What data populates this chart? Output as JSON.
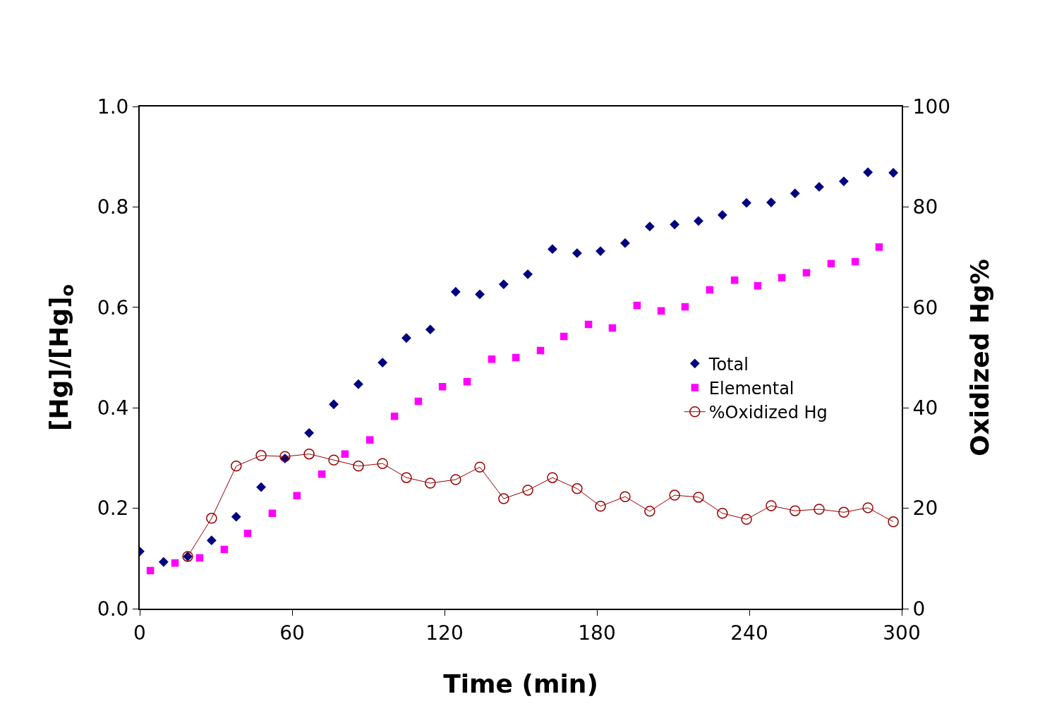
{
  "chart_data": {
    "type": "scatter",
    "xlabel": "Time (min)",
    "ylabel": "[Hg]/[Hg]$_{o}$",
    "y2label": "Oxidized Hg%",
    "xlim": [
      0,
      300
    ],
    "xticks": [
      0,
      60,
      120,
      180,
      240,
      300
    ],
    "ylim": [
      0,
      1
    ],
    "yticks": [
      {
        "value": 0,
        "label": "0.0"
      },
      {
        "value": 0.2,
        "label": "0.2"
      },
      {
        "value": 0.4,
        "label": "0.4"
      },
      {
        "value": 0.6,
        "label": "0.6"
      },
      {
        "value": 0.8,
        "label": "0.8"
      },
      {
        "value": 1,
        "label": "1.0"
      }
    ],
    "y2lim": [
      0,
      100
    ],
    "y2ticks": [
      0,
      20,
      40,
      60,
      80,
      100
    ],
    "grid": false,
    "legend": "right",
    "series": [
      {
        "name": "Total",
        "type": "scatter",
        "marker": "diamond",
        "color": "#000080",
        "x": [
          0,
          9.4,
          18.9,
          28.3,
          38,
          47.8,
          57.2,
          66.7,
          76.4,
          86.1,
          95.6,
          105,
          114.4,
          124.4,
          133.9,
          143.3,
          152.8,
          162.5,
          172.2,
          181.4,
          191.1,
          200.8,
          210.6,
          220,
          229.4,
          238.9,
          248.6,
          258,
          267.5,
          277.2,
          286.7,
          296.7
        ],
        "values": [
          0.114,
          0.093,
          0.104,
          0.136,
          0.183,
          0.242,
          0.299,
          0.35,
          0.407,
          0.447,
          0.49,
          0.539,
          0.556,
          0.631,
          0.626,
          0.646,
          0.666,
          0.716,
          0.708,
          0.712,
          0.728,
          0.761,
          0.765,
          0.772,
          0.784,
          0.808,
          0.809,
          0.827,
          0.84,
          0.851,
          0.869,
          0.868
        ]
      },
      {
        "name": "Elemental",
        "type": "scatter",
        "marker": "square",
        "color": "#ff00ff",
        "x": [
          4.2,
          13.9,
          23.6,
          33.3,
          42.5,
          52.2,
          61.9,
          71.7,
          80.8,
          90.6,
          100.3,
          109.7,
          119.2,
          128.9,
          138.6,
          148.1,
          157.8,
          167,
          176.7,
          186.1,
          195.8,
          205.3,
          214.7,
          224.4,
          234.2,
          243.3,
          252.8,
          262.5,
          272.2,
          281.7,
          291.1
        ],
        "values": [
          0.076,
          0.091,
          0.101,
          0.118,
          0.15,
          0.19,
          0.225,
          0.268,
          0.308,
          0.336,
          0.383,
          0.413,
          0.442,
          0.452,
          0.497,
          0.5,
          0.514,
          0.542,
          0.566,
          0.559,
          0.604,
          0.593,
          0.601,
          0.635,
          0.654,
          0.643,
          0.659,
          0.669,
          0.687,
          0.691,
          0.72
        ]
      },
      {
        "name": "%Oxidized Hg",
        "type": "line",
        "marker": "circle",
        "axis": "y2",
        "color": "#990000",
        "x": [
          18.9,
          28.3,
          38,
          47.8,
          57.2,
          66.7,
          76.4,
          86.1,
          95.6,
          105,
          114.4,
          124.4,
          133.9,
          143.3,
          152.8,
          162.5,
          172.2,
          181.4,
          191.1,
          200.8,
          210.6,
          220,
          229.4,
          238.9,
          248.6,
          258,
          267.5,
          277.2,
          286.7,
          296.7
        ],
        "values": [
          10.4,
          18,
          28.4,
          30.5,
          30.3,
          30.8,
          29.6,
          28.4,
          28.9,
          26.1,
          25,
          25.7,
          28.2,
          21.9,
          23.6,
          26.1,
          23.9,
          20.4,
          22.3,
          19.4,
          22.6,
          22.2,
          19,
          17.8,
          20.5,
          19.5,
          19.8,
          19.2,
          20.1,
          17.3
        ]
      }
    ]
  }
}
